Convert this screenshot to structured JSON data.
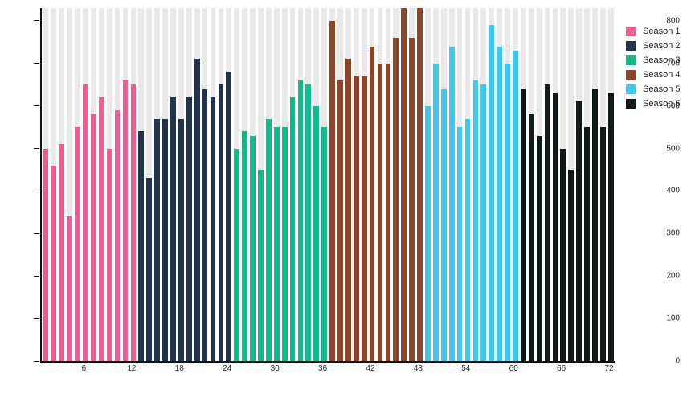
{
  "chart_data": {
    "type": "bar",
    "title": "",
    "xlabel": "",
    "ylabel": "",
    "grid": false,
    "legend_position": "top-right",
    "ylim": [
      0,
      830
    ],
    "y_ticks": [
      0,
      100,
      200,
      300,
      400,
      500,
      600,
      700,
      800
    ],
    "x_ticks": [
      6,
      12,
      18,
      24,
      30,
      36,
      42,
      48,
      54,
      60,
      66,
      72
    ],
    "episodes_per_season": 12,
    "total_bars": 72,
    "background_stripe_color": "#e9e9e9",
    "axis_color": "#111111",
    "tick_text_color": "#2b2b2b",
    "series": [
      {
        "name": "Season 1",
        "color": "#ee5d92",
        "values": [
          500,
          460,
          510,
          340,
          550,
          650,
          580,
          620,
          500,
          590,
          660,
          650
        ]
      },
      {
        "name": "Season 2",
        "color": "#22344c",
        "values": [
          540,
          430,
          570,
          570,
          620,
          570,
          620,
          710,
          640,
          620,
          650,
          680
        ]
      },
      {
        "name": "Season 3",
        "color": "#10ba8a",
        "values": [
          500,
          540,
          530,
          450,
          570,
          550,
          550,
          620,
          660,
          650,
          600,
          550
        ]
      },
      {
        "name": "Season 4",
        "color": "#8d4529",
        "values": [
          800,
          660,
          710,
          670,
          670,
          740,
          700,
          700,
          760,
          830,
          760,
          830
        ]
      },
      {
        "name": "Season 5",
        "color": "#41c8f0",
        "values": [
          600,
          700,
          640,
          740,
          550,
          570,
          660,
          650,
          790,
          740,
          700,
          730
        ]
      },
      {
        "name": "Season 6",
        "color": "#101a1c",
        "values": [
          640,
          580,
          530,
          650,
          630,
          500,
          450,
          610,
          550,
          640,
          550,
          630
        ]
      }
    ]
  }
}
